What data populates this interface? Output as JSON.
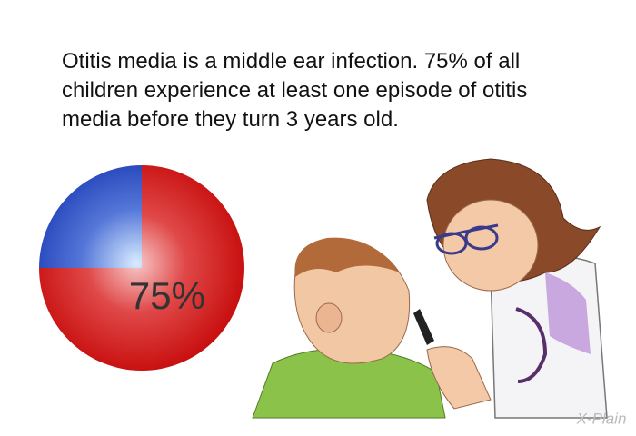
{
  "chart_data": {
    "type": "pie",
    "title": "Otitis media is a middle ear infection. 75% of all children experience at least one episode of otitis media before they turn 3 years old.",
    "values": [
      75,
      25
    ],
    "value_labels": [
      "75%",
      null
    ],
    "colors": [
      "#d81818",
      "#2a4cc0"
    ],
    "watermark": "X-Plain"
  }
}
